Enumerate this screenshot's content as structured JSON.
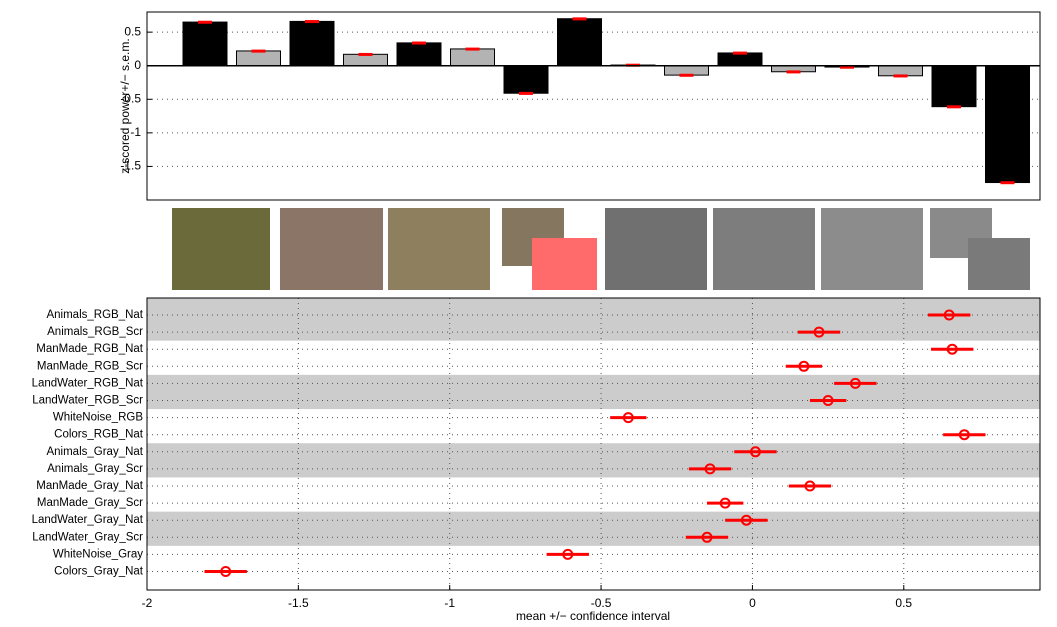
{
  "chart_data": [
    {
      "type": "bar",
      "ylabel": "z-scored power+/− s.e.m.",
      "values": [
        0.65,
        0.22,
        0.66,
        0.17,
        0.34,
        0.25,
        -0.41,
        0.7,
        0.01,
        -0.14,
        0.19,
        -0.09,
        -0.02,
        -0.15,
        -0.61,
        -1.74
      ],
      "errors": [
        0.02,
        0.02,
        0.02,
        0.02,
        0.02,
        0.02,
        0.02,
        0.02,
        0.02,
        0.02,
        0.02,
        0.02,
        0.02,
        0.02,
        0.02,
        0.02
      ],
      "colors": [
        "#000000",
        "#b3b3b3",
        "#000000",
        "#b3b3b3",
        "#000000",
        "#b3b3b3",
        "#000000",
        "#000000",
        "#000000",
        "#b3b3b3",
        "#000000",
        "#b3b3b3",
        "#000000",
        "#b3b3b3",
        "#000000",
        "#000000"
      ],
      "error_color": "#ff0000",
      "ylim": [
        -2,
        0.8
      ],
      "yticks": [
        -1.5,
        -1,
        -0.5,
        0,
        0.5
      ],
      "grid": true
    },
    {
      "type": "dot",
      "xlabel": "mean +/− confidence interval",
      "categories": [
        "Animals_RGB_Nat",
        "Animals_RGB_Scr",
        "ManMade_RGB_Nat",
        "ManMade_RGB_Scr",
        "LandWater_RGB_Nat",
        "LandWater_RGB_Scr",
        "WhiteNoise_RGB",
        "Colors_RGB_Nat",
        "Animals_Gray_Nat",
        "Animals_Gray_Scr",
        "ManMade_Gray_Nat",
        "ManMade_Gray_Scr",
        "LandWater_Gray_Nat",
        "LandWater_Gray_Scr",
        "WhiteNoise_Gray",
        "Colors_Gray_Nat"
      ],
      "values": [
        0.65,
        0.22,
        0.66,
        0.17,
        0.34,
        0.25,
        -0.41,
        0.7,
        0.01,
        -0.14,
        0.19,
        -0.09,
        -0.02,
        -0.15,
        -0.61,
        -1.74
      ],
      "errors": [
        0.07,
        0.07,
        0.07,
        0.06,
        0.07,
        0.06,
        0.06,
        0.07,
        0.07,
        0.07,
        0.07,
        0.06,
        0.07,
        0.07,
        0.07,
        0.07
      ],
      "color": "#ff0000",
      "xlim": [
        -2,
        0.95
      ],
      "xticks": [
        -2,
        -1.5,
        -1,
        -0.5,
        0,
        0.5
      ],
      "grid": true
    }
  ]
}
